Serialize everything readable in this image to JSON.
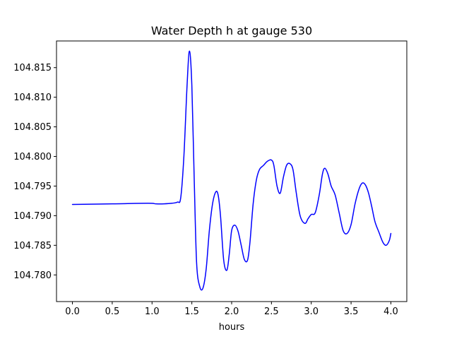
{
  "chart_data": {
    "type": "line",
    "title": "Water Depth h at gauge 530",
    "xlabel": "hours",
    "ylabel": "",
    "xlim": [
      -0.2,
      4.2
    ],
    "ylim": [
      104.7755,
      104.8195
    ],
    "xticks": [
      0.0,
      0.5,
      1.0,
      1.5,
      2.0,
      2.5,
      3.0,
      3.5,
      4.0
    ],
    "xtick_labels": [
      "0.0",
      "0.5",
      "1.0",
      "1.5",
      "2.0",
      "2.5",
      "3.0",
      "3.5",
      "4.0"
    ],
    "yticks": [
      104.78,
      104.785,
      104.79,
      104.795,
      104.8,
      104.805,
      104.81,
      104.815
    ],
    "ytick_labels": [
      "104.780",
      "104.785",
      "104.790",
      "104.795",
      "104.800",
      "104.805",
      "104.810",
      "104.815"
    ],
    "grid": false,
    "series": [
      {
        "color": "#0000ff",
        "x": [
          0.0,
          0.5,
          0.95,
          1.05,
          1.15,
          1.25,
          1.32,
          1.36,
          1.4,
          1.44,
          1.47,
          1.5,
          1.53,
          1.56,
          1.6,
          1.64,
          1.68,
          1.72,
          1.76,
          1.8,
          1.83,
          1.86,
          1.9,
          1.94,
          1.97,
          2.0,
          2.04,
          2.08,
          2.12,
          2.16,
          2.2,
          2.23,
          2.27,
          2.31,
          2.35,
          2.4,
          2.45,
          2.5,
          2.53,
          2.57,
          2.61,
          2.65,
          2.69,
          2.73,
          2.77,
          2.81,
          2.86,
          2.92,
          2.96,
          3.0,
          3.05,
          3.1,
          3.14,
          3.17,
          3.21,
          3.25,
          3.3,
          3.35,
          3.4,
          3.45,
          3.5,
          3.55,
          3.6,
          3.64,
          3.68,
          3.72,
          3.76,
          3.8,
          3.85,
          3.9,
          3.94,
          3.98,
          4.0
        ],
        "y": [
          104.7919,
          104.792,
          104.7921,
          104.792,
          104.792,
          104.7921,
          104.7923,
          104.793,
          104.8,
          104.812,
          104.8178,
          104.812,
          104.796,
          104.782,
          104.778,
          104.7778,
          104.781,
          104.7875,
          104.792,
          104.794,
          104.7935,
          104.79,
          104.7825,
          104.7808,
          104.7835,
          104.7875,
          104.7884,
          104.7874,
          104.785,
          104.7826,
          104.7825,
          104.7855,
          104.792,
          104.796,
          104.7978,
          104.7985,
          104.7992,
          104.7994,
          104.7985,
          104.795,
          104.7938,
          104.7965,
          104.7985,
          104.7988,
          104.7978,
          104.794,
          104.79,
          104.7887,
          104.7895,
          104.7902,
          104.7905,
          104.7935,
          104.797,
          104.798,
          104.797,
          104.795,
          104.7935,
          104.7905,
          104.7875,
          104.787,
          104.7885,
          104.792,
          104.7945,
          104.7955,
          104.7952,
          104.7938,
          104.7915,
          104.789,
          104.7872,
          104.7855,
          104.785,
          104.7858,
          104.787
        ]
      }
    ]
  }
}
